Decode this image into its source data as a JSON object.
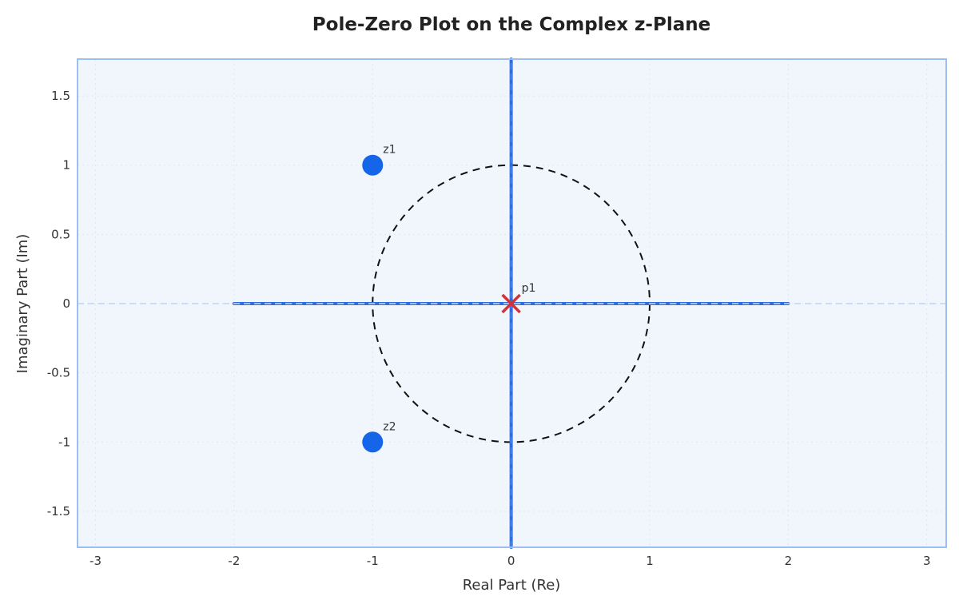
{
  "chart_data": {
    "type": "scatter",
    "title": "Pole-Zero Plot on the Complex z-Plane",
    "xlabel": "Real Part (Re)",
    "ylabel": "Imaginary Part (Im)",
    "xlim": [
      -3.13,
      3.14
    ],
    "ylim": [
      -1.76,
      1.766
    ],
    "xticks": [
      -3,
      -2,
      -1,
      0,
      1,
      2,
      3
    ],
    "xtick_labels": [
      "-3",
      "-2",
      "-1",
      "0",
      "1",
      "2",
      "3"
    ],
    "yticks": [
      1.5,
      1,
      0.5,
      0,
      -0.5,
      -1,
      -1.5
    ],
    "ytick_labels": [
      "1.5",
      "1",
      "0.5",
      "0",
      "-0.5",
      "-1",
      "-1.5"
    ],
    "grid": true,
    "legend": null,
    "series": [
      {
        "name": "zeros",
        "marker": "circle",
        "color": "#1565E8",
        "points": [
          {
            "label": "z1",
            "x": -1,
            "y": 1
          },
          {
            "label": "z2",
            "x": -1,
            "y": -1
          }
        ]
      },
      {
        "name": "poles",
        "marker": "x",
        "color": "#D0343A",
        "points": [
          {
            "label": "p1",
            "x": 0,
            "y": 0
          }
        ]
      }
    ],
    "reference_shapes": [
      {
        "name": "unit-circle",
        "type": "circle",
        "center": [
          0,
          0
        ],
        "radius": 1,
        "style": "dashed",
        "color": "#111111"
      },
      {
        "name": "real-axis",
        "type": "line",
        "from": [
          -2,
          0
        ],
        "to": [
          2,
          0
        ],
        "color": "#2E6EE0"
      },
      {
        "name": "imag-axis",
        "type": "line",
        "from": [
          0,
          -1.76
        ],
        "to": [
          0,
          1.766
        ],
        "color": "#2E6EE0"
      },
      {
        "name": "zero-hline",
        "type": "hline",
        "y": 0,
        "style": "dashed",
        "color": "#BFD4F7"
      }
    ]
  },
  "colors": {
    "plot_background": "#F1F6FD",
    "frame": "#9DBEF1",
    "grid": "#DCE5F3",
    "axis_line": "#2E6EE0",
    "axis_dash": "#5E93EE"
  }
}
